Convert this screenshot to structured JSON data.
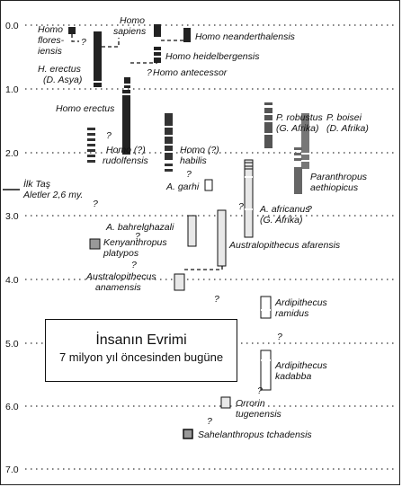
{
  "axis_ticks": [
    "0.0",
    "1.0",
    "2.0",
    "3.0",
    "4.0",
    "5.0",
    "6.0",
    "7.0"
  ],
  "title_box": {
    "title": "İnsanın Evrimi",
    "subtitle": "7 milyon yıl öncesinden bugüne"
  },
  "tool_marker": {
    "line1": "İlk Taş",
    "line2": "Aletler 2,6 my."
  },
  "species_labels": {
    "floresiensis_1": "Homo",
    "floresiensis_2": "flores-",
    "floresiensis_3": "iensis",
    "sapiens_1": "Homo",
    "sapiens_2": "sapiens",
    "neanderthalensis": "Homo neanderthalensis",
    "heidelbergensis": "Homo heidelbergensis",
    "antecessor": "Homo antecessor",
    "erectus_asia_1": "H. erectus",
    "erectus_asia_2": "(D. Asya)",
    "erectus": "Homo erectus",
    "rudolfensis_1": "Homo (?)",
    "rudolfensis_2": "rudolfensis",
    "habilis_1": "Homo (?)",
    "habilis_2": "habilis",
    "garhi": "A. garhi",
    "robustus_1": "P. robustus",
    "robustus_2": "(G. Afrika)",
    "boisei_1": "P. boisei",
    "boisei_2": "(D. Afrika)",
    "aethiopicus_1": "Paranthropus",
    "aethiopicus_2": "aethiopicus",
    "africanus_1": "A. africanus",
    "africanus_2": "(G. Afrika)",
    "bahrelghazali": "A. bahrelghazali",
    "kenyanthropus_1": "Kenyanthropus",
    "kenyanthropus_2": "platypos",
    "afarensis": "Australopithecus afarensis",
    "anamensis_1": "Australopithecus",
    "anamensis_2": "anamensis",
    "ramidus_1": "Ardipithecus",
    "ramidus_2": "ramidus",
    "kadabba_1": "Ardipithecus",
    "kadabba_2": "kadabba",
    "orrorin_1": "Orrorin",
    "orrorin_2": "tugenensis",
    "sahelanthropus": "Sahelanthropus tchadensis"
  },
  "question_mark": "?"
}
